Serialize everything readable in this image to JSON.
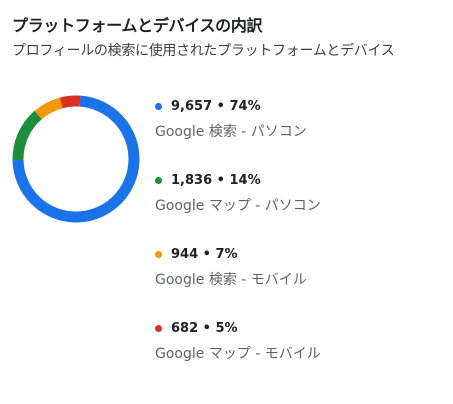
{
  "header": {
    "title": "プラットフォームとデバイスの内訳",
    "subtitle": "プロフィールの検索に使用されたプラットフォームとデバイス"
  },
  "chart_data": {
    "type": "pie",
    "donut": true,
    "title": "プラットフォームとデバイスの内訳",
    "subtitle": "プロフィールの検索に使用されたプラットフォームとデバイス",
    "legend_placement": "right",
    "categories": [
      "Google 検索 - パソコン",
      "Google マップ - パソコン",
      "Google 検索 - モバイル",
      "Google マップ - モバイル"
    ],
    "values": [
      9657,
      1836,
      944,
      682
    ],
    "percents": [
      74,
      14,
      7,
      5
    ],
    "value_labels": [
      "9,657 • 74%",
      "1,836 • 14%",
      "944 • 7%",
      "682 • 5%"
    ],
    "colors": [
      "#1a73e8",
      "#1e8e3e",
      "#f29900",
      "#d93025"
    ]
  }
}
